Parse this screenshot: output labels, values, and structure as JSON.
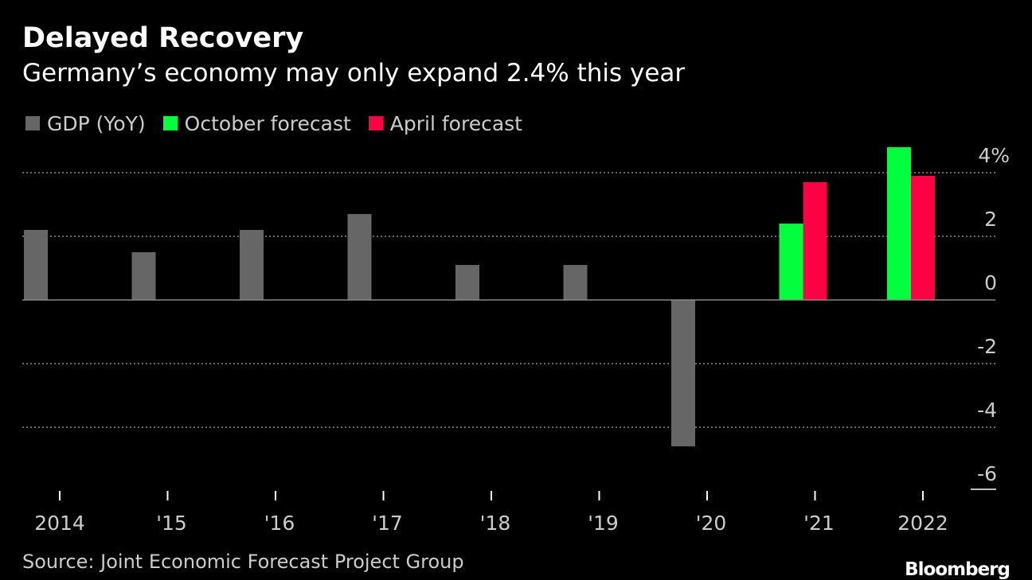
{
  "title": "Delayed Recovery",
  "subtitle": "Germany’s economy may only expand 2.4% this year",
  "source": "Source: Joint Economic Forecast Project Group",
  "brand": "Bloomberg",
  "legend": [
    {
      "label": "GDP (YoY)",
      "color": "#666666"
    },
    {
      "label": "October forecast",
      "color": "#00ff3d"
    },
    {
      "label": "April forecast",
      "color": "#ff0044"
    }
  ],
  "chart_data": {
    "type": "bar",
    "categories": [
      "2014",
      "'15",
      "'16",
      "'17",
      "'18",
      "'19",
      "'20",
      "'21",
      "2022"
    ],
    "series": [
      {
        "name": "GDP (YoY)",
        "color": "#666666",
        "values": [
          2.2,
          1.5,
          2.2,
          2.7,
          1.1,
          1.1,
          -4.6,
          null,
          null
        ]
      },
      {
        "name": "October forecast",
        "color": "#00ff3d",
        "values": [
          null,
          null,
          null,
          null,
          null,
          null,
          null,
          2.4,
          4.8
        ]
      },
      {
        "name": "April forecast",
        "color": "#ff0044",
        "values": [
          null,
          null,
          null,
          null,
          null,
          null,
          null,
          3.7,
          3.9
        ]
      }
    ],
    "yticks": [
      {
        "value": 4,
        "label": "4%"
      },
      {
        "value": 2,
        "label": "2"
      },
      {
        "value": 0,
        "label": "0"
      },
      {
        "value": -2,
        "label": "-2"
      },
      {
        "value": -4,
        "label": "-4"
      },
      {
        "value": -6,
        "label": "-6"
      }
    ],
    "ylim": [
      -6,
      4
    ],
    "grid": true,
    "legend_position": "top-left",
    "colors": {
      "axis": "#888888",
      "grid": "#888888",
      "tick_label": "#cccccc"
    }
  }
}
